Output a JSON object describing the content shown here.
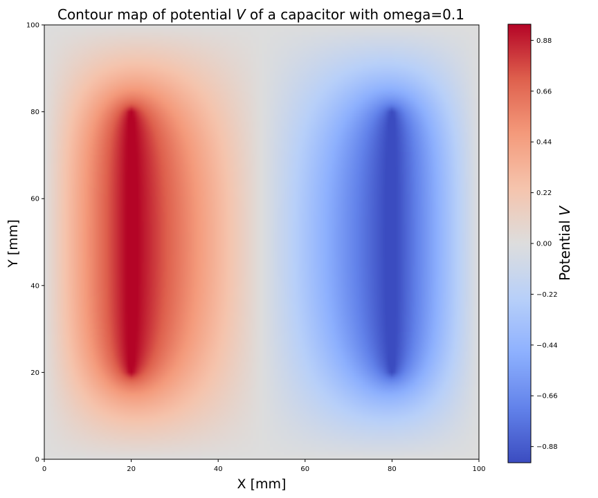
{
  "chart_data": {
    "type": "heatmap",
    "title_prefix": "Contour map of potential ",
    "title_var": "V",
    "title_suffix": " of a capacitor with omega=0.1",
    "xlabel": "X [mm]",
    "ylabel": "Y [mm]",
    "xlim": [
      0,
      100
    ],
    "ylim": [
      0,
      100
    ],
    "xticks": [
      0,
      20,
      40,
      60,
      80,
      100
    ],
    "yticks": [
      0,
      20,
      40,
      60,
      80,
      100
    ],
    "colormap": "coolwarm",
    "colorbar": {
      "label_prefix": "Potential ",
      "label_var": "V",
      "range": [
        -0.95,
        0.95
      ],
      "ticks": [
        -0.88,
        -0.66,
        -0.44,
        -0.22,
        0.0,
        0.22,
        0.44,
        0.66,
        0.88
      ],
      "tick_labels": [
        "−0.88",
        "−0.66",
        "−0.44",
        "−0.22",
        "0.00",
        "0.22",
        "0.44",
        "0.66",
        "0.88"
      ]
    },
    "plates": [
      {
        "x": 20,
        "y_start": 20,
        "y_end": 80,
        "potential": 1.0
      },
      {
        "x": 80,
        "y_start": 20,
        "y_end": 80,
        "potential": -1.0
      }
    ],
    "boundary_potential": 0.0
  }
}
